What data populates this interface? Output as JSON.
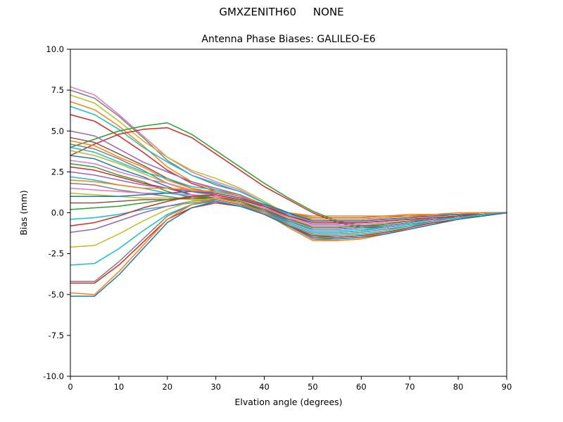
{
  "chart_data": {
    "type": "line",
    "title": "GMXZENITH60     NONE",
    "subtitle": "Antenna Phase Biases: GALILEO-E6",
    "xlabel": "Elvation angle (degrees)",
    "ylabel": "Bias (mm)",
    "xlim": [
      0,
      90
    ],
    "ylim": [
      -10,
      10
    ],
    "grid": false,
    "legend": "none",
    "xticks": [
      0,
      10,
      20,
      30,
      40,
      50,
      60,
      70,
      80,
      90
    ],
    "ytick_values": [
      10,
      7.5,
      5,
      2.5,
      0,
      -2.5,
      -5,
      -7.5,
      -10
    ],
    "ytick_labels": [
      "10.0",
      "7.5",
      "5.0",
      "2.5",
      "0.0",
      "-2.5",
      "-5.0",
      "-7.5",
      "-10.0"
    ],
    "x": [
      0,
      5,
      10,
      15,
      20,
      25,
      30,
      35,
      40,
      45,
      50,
      55,
      60,
      65,
      70,
      75,
      80,
      85,
      90
    ],
    "series": [
      {
        "color": "#e377c2",
        "values": [
          7.7,
          7.2,
          6.0,
          4.7,
          3.4,
          2.5,
          1.9,
          1.4,
          0.6,
          -0.1,
          -0.5,
          -0.5,
          -0.5,
          -0.4,
          -0.3,
          -0.2,
          -0.1,
          -0.1,
          0
        ]
      },
      {
        "color": "#7f7f7f",
        "values": [
          7.5,
          7.0,
          5.9,
          4.6,
          3.2,
          2.3,
          1.7,
          1.3,
          0.6,
          0.0,
          -0.3,
          -0.3,
          -0.3,
          -0.2,
          -0.2,
          -0.1,
          -0.1,
          0,
          0
        ]
      },
      {
        "color": "#bcbd22",
        "values": [
          7.2,
          6.7,
          5.6,
          4.4,
          3.4,
          2.6,
          2.1,
          1.5,
          0.7,
          -0.1,
          -0.6,
          -0.6,
          -0.6,
          -0.5,
          -0.4,
          -0.3,
          -0.2,
          -0.1,
          0
        ]
      },
      {
        "color": "#ff7f0e",
        "values": [
          6.8,
          6.3,
          5.3,
          4.1,
          2.8,
          1.9,
          1.4,
          1.1,
          0.5,
          0.0,
          -0.2,
          -0.2,
          -0.2,
          -0.2,
          -0.1,
          -0.1,
          0,
          0,
          0
        ]
      },
      {
        "color": "#17becf",
        "values": [
          6.5,
          6.0,
          5.1,
          4.0,
          3.1,
          2.3,
          1.8,
          1.3,
          0.6,
          -0.2,
          -0.7,
          -0.7,
          -0.6,
          -0.5,
          -0.4,
          -0.3,
          -0.2,
          -0.1,
          0
        ]
      },
      {
        "color": "#d62728",
        "values": [
          6.0,
          5.6,
          4.7,
          3.7,
          2.6,
          1.8,
          1.3,
          1.0,
          0.4,
          -0.1,
          -0.4,
          -0.4,
          -0.4,
          -0.3,
          -0.2,
          -0.2,
          -0.1,
          0,
          0
        ]
      },
      {
        "color": "#2ca02c",
        "values": [
          4.0,
          4.5,
          5.0,
          5.3,
          5.5,
          4.8,
          3.8,
          2.8,
          1.8,
          0.9,
          0.1,
          -0.5,
          -0.8,
          -0.8,
          -0.6,
          -0.4,
          -0.2,
          -0.1,
          0
        ]
      },
      {
        "color": "#d62728",
        "values": [
          3.5,
          4.2,
          4.8,
          5.1,
          5.2,
          4.6,
          3.6,
          2.6,
          1.6,
          0.8,
          0.0,
          -0.6,
          -0.9,
          -0.9,
          -0.7,
          -0.5,
          -0.3,
          -0.1,
          0
        ]
      },
      {
        "color": "#9467bd",
        "values": [
          5.0,
          4.7,
          3.9,
          3.1,
          2.5,
          1.9,
          1.5,
          1.1,
          0.4,
          -0.3,
          -0.9,
          -0.9,
          -0.8,
          -0.7,
          -0.5,
          -0.4,
          -0.2,
          -0.1,
          0
        ]
      },
      {
        "color": "#8c564b",
        "values": [
          4.6,
          4.3,
          3.6,
          2.9,
          2.1,
          1.5,
          1.2,
          0.9,
          0.3,
          -0.5,
          -1.0,
          -1.0,
          -0.9,
          -0.8,
          -0.6,
          -0.4,
          -0.3,
          -0.1,
          0
        ]
      },
      {
        "color": "#ff7f0e",
        "values": [
          4.4,
          4.1,
          3.4,
          2.8,
          2.0,
          1.5,
          1.1,
          0.8,
          0.3,
          -0.4,
          -0.8,
          -0.8,
          -0.7,
          -0.6,
          -0.5,
          -0.3,
          -0.2,
          -0.1,
          0
        ]
      },
      {
        "color": "#7f7f7f",
        "values": [
          4.2,
          3.9,
          3.3,
          2.6,
          1.8,
          1.3,
          1.0,
          0.7,
          0.2,
          -0.6,
          -1.2,
          -1.2,
          -1.1,
          -0.9,
          -0.7,
          -0.5,
          -0.3,
          -0.1,
          0
        ]
      },
      {
        "color": "#17becf",
        "values": [
          4.0,
          3.7,
          3.1,
          2.5,
          2.1,
          1.6,
          1.4,
          1.0,
          0.5,
          -0.1,
          -0.5,
          -0.5,
          -0.5,
          -0.4,
          -0.3,
          -0.2,
          -0.1,
          -0.1,
          0
        ]
      },
      {
        "color": "#bcbd22",
        "values": [
          3.8,
          3.5,
          3.0,
          2.4,
          1.8,
          1.3,
          1.0,
          0.7,
          0.2,
          -0.7,
          -1.4,
          -1.4,
          -1.3,
          -1.1,
          -0.8,
          -0.6,
          -0.4,
          -0.2,
          0
        ]
      },
      {
        "color": "#1f77b4",
        "values": [
          3.5,
          3.3,
          2.7,
          2.2,
          1.6,
          1.1,
          0.9,
          0.6,
          0.2,
          -0.5,
          -1.0,
          -1.0,
          -0.9,
          -0.8,
          -0.6,
          -0.4,
          -0.3,
          -0.1,
          0
        ]
      },
      {
        "color": "#e377c2",
        "values": [
          3.2,
          3.0,
          2.5,
          2.1,
          1.8,
          1.4,
          1.2,
          0.9,
          0.4,
          -0.2,
          -0.6,
          -0.6,
          -0.6,
          -0.5,
          -0.4,
          -0.3,
          -0.2,
          -0.1,
          0
        ]
      },
      {
        "color": "#2ca02c",
        "values": [
          3.0,
          2.8,
          2.3,
          1.9,
          1.3,
          0.9,
          0.8,
          0.5,
          0.0,
          -0.8,
          -1.5,
          -1.5,
          -1.4,
          -1.2,
          -0.9,
          -0.6,
          -0.4,
          -0.2,
          0
        ]
      },
      {
        "color": "#d62728",
        "values": [
          2.8,
          2.6,
          2.2,
          1.8,
          1.5,
          1.1,
          1.0,
          0.7,
          0.2,
          -0.4,
          -0.9,
          -0.9,
          -0.8,
          -0.7,
          -0.5,
          -0.4,
          -0.2,
          -0.1,
          0
        ]
      },
      {
        "color": "#9467bd",
        "values": [
          2.5,
          2.3,
          2.0,
          1.7,
          1.5,
          1.3,
          1.1,
          0.8,
          0.4,
          -0.2,
          -0.7,
          -0.7,
          -0.6,
          -0.5,
          -0.4,
          -0.3,
          -0.2,
          -0.1,
          0
        ]
      },
      {
        "color": "#17becf",
        "values": [
          2.2,
          2.0,
          1.7,
          1.5,
          1.2,
          1.0,
          0.9,
          0.6,
          0.1,
          -0.5,
          -1.1,
          -1.1,
          -1.0,
          -0.9,
          -0.7,
          -0.5,
          -0.3,
          -0.1,
          0
        ]
      },
      {
        "color": "#ff7f0e",
        "values": [
          2.0,
          1.9,
          1.7,
          1.5,
          1.5,
          1.4,
          1.3,
          1.0,
          0.5,
          0.0,
          -0.4,
          -0.4,
          -0.4,
          -0.3,
          -0.2,
          -0.2,
          -0.1,
          0,
          0
        ]
      },
      {
        "color": "#7f7f7f",
        "values": [
          1.8,
          1.7,
          1.4,
          1.2,
          1.0,
          0.8,
          0.7,
          0.4,
          0.0,
          -0.7,
          -1.3,
          -1.3,
          -1.2,
          -1.0,
          -0.8,
          -0.5,
          -0.3,
          -0.2,
          0
        ]
      },
      {
        "color": "#e377c2",
        "values": [
          1.5,
          1.4,
          1.3,
          1.2,
          1.2,
          1.1,
          1.0,
          0.8,
          0.3,
          -0.3,
          -0.8,
          -0.8,
          -0.7,
          -0.6,
          -0.5,
          -0.3,
          -0.2,
          -0.1,
          0
        ]
      },
      {
        "color": "#bcbd22",
        "values": [
          1.2,
          1.1,
          1.0,
          0.9,
          0.9,
          0.8,
          0.8,
          0.5,
          0.0,
          -0.8,
          -1.6,
          -1.6,
          -1.5,
          -1.2,
          -1.0,
          -0.7,
          -0.4,
          -0.2,
          0
        ]
      },
      {
        "color": "#1f77b4",
        "values": [
          1.0,
          1.0,
          1.0,
          1.1,
          1.2,
          1.3,
          1.2,
          0.9,
          0.5,
          0.0,
          -0.5,
          -0.5,
          -0.5,
          -0.4,
          -0.3,
          -0.2,
          -0.1,
          -0.1,
          0
        ]
      },
      {
        "color": "#8c564b",
        "values": [
          0.6,
          0.6,
          0.7,
          0.8,
          0.8,
          0.9,
          0.9,
          0.6,
          0.1,
          -0.6,
          -1.2,
          -1.2,
          -1.1,
          -0.9,
          -0.7,
          -0.5,
          -0.3,
          -0.1,
          0
        ]
      },
      {
        "color": "#2ca02c",
        "values": [
          0.2,
          0.3,
          0.4,
          0.6,
          0.8,
          1.0,
          0.9,
          0.7,
          0.2,
          -0.4,
          -0.9,
          -0.9,
          -0.8,
          -0.7,
          -0.5,
          -0.4,
          -0.2,
          -0.1,
          0
        ]
      },
      {
        "color": "#17becf",
        "values": [
          -0.4,
          -0.3,
          -0.1,
          0.2,
          0.4,
          0.6,
          0.7,
          0.4,
          0.0,
          -0.8,
          -1.4,
          -1.4,
          -1.3,
          -1.1,
          -0.8,
          -0.6,
          -0.4,
          -0.2,
          0
        ]
      },
      {
        "color": "#d62728",
        "values": [
          -0.8,
          -0.6,
          -0.2,
          0.3,
          0.7,
          1.0,
          1.1,
          0.8,
          0.4,
          -0.2,
          -0.6,
          -0.6,
          -0.6,
          -0.5,
          -0.4,
          -0.3,
          -0.2,
          -0.1,
          0
        ]
      },
      {
        "color": "#9467bd",
        "values": [
          -1.2,
          -1.0,
          -0.5,
          0.0,
          0.4,
          0.7,
          0.8,
          0.5,
          0.1,
          -0.5,
          -1.0,
          -1.0,
          -0.9,
          -0.8,
          -0.6,
          -0.4,
          -0.3,
          -0.1,
          0
        ]
      },
      {
        "color": "#bcbd22",
        "values": [
          -2.1,
          -2.0,
          -1.3,
          -0.5,
          0.2,
          0.7,
          0.9,
          0.6,
          0.0,
          -0.8,
          -1.5,
          -1.5,
          -1.4,
          -1.2,
          -0.9,
          -0.6,
          -0.4,
          -0.2,
          0
        ]
      },
      {
        "color": "#17becf",
        "values": [
          -3.2,
          -3.1,
          -2.2,
          -1.1,
          -0.1,
          0.5,
          0.7,
          0.4,
          0.0,
          -0.6,
          -1.2,
          -1.2,
          -1.1,
          -0.9,
          -0.7,
          -0.5,
          -0.3,
          -0.1,
          0
        ]
      },
      {
        "color": "#7f7f7f",
        "values": [
          -4.2,
          -4.2,
          -3.0,
          -1.6,
          -0.2,
          0.5,
          0.8,
          0.5,
          0.0,
          -0.8,
          -1.6,
          -1.7,
          -1.6,
          -1.3,
          -1.0,
          -0.7,
          -0.4,
          -0.2,
          0
        ]
      },
      {
        "color": "#d62728",
        "values": [
          -4.3,
          -4.3,
          -3.2,
          -1.8,
          -0.4,
          0.3,
          0.6,
          0.4,
          -0.1,
          -0.8,
          -1.4,
          -1.5,
          -1.4,
          -1.2,
          -0.9,
          -0.6,
          -0.4,
          -0.2,
          0
        ]
      },
      {
        "color": "#ff7f0e",
        "values": [
          -4.9,
          -5.0,
          -3.6,
          -2.0,
          -0.4,
          0.5,
          0.9,
          0.6,
          0.0,
          -0.9,
          -1.7,
          -1.7,
          -1.6,
          -1.3,
          -1.0,
          -0.7,
          -0.4,
          -0.2,
          0
        ]
      },
      {
        "color": "#1f77b4",
        "values": [
          -5.1,
          -5.1,
          -3.8,
          -2.2,
          -0.6,
          0.3,
          0.7,
          0.4,
          -0.1,
          -0.8,
          -1.5,
          -1.6,
          -1.5,
          -1.3,
          -1.0,
          -0.7,
          -0.4,
          -0.2,
          0
        ]
      }
    ]
  }
}
